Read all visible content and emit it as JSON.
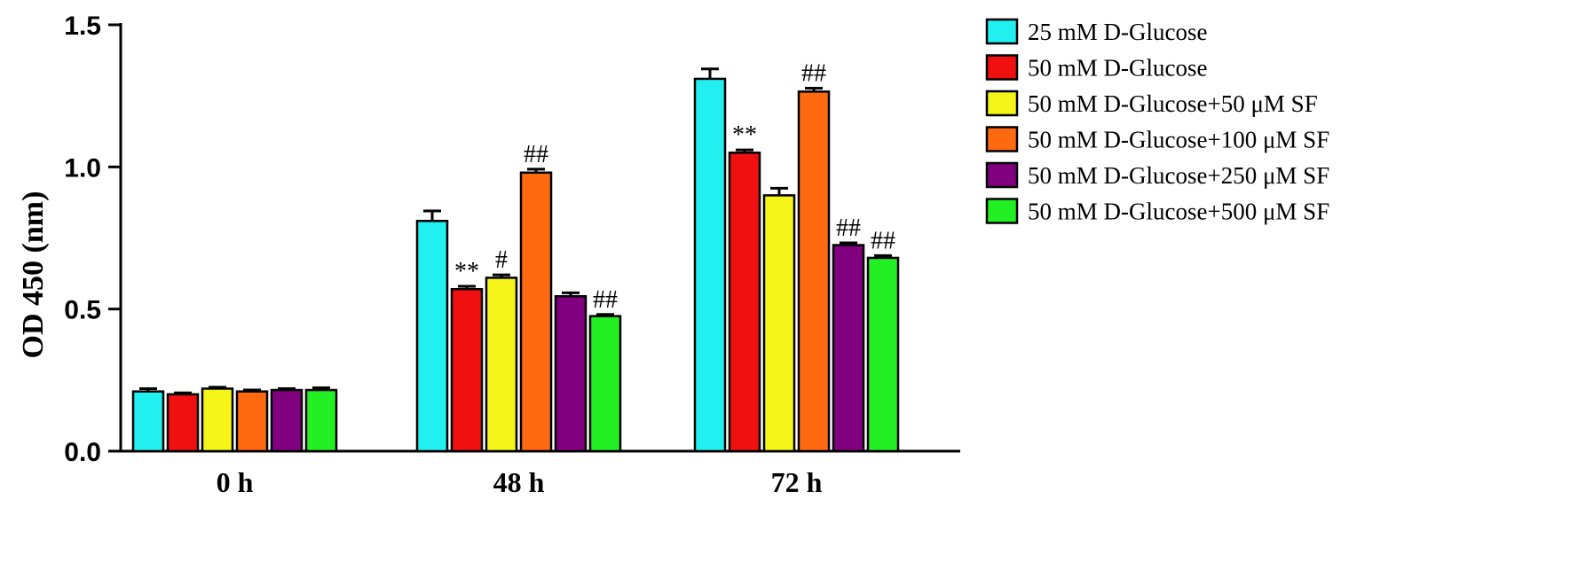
{
  "chart_data": {
    "type": "bar",
    "title": "",
    "xlabel": "",
    "ylabel": "OD 450 (nm)",
    "ylim": [
      0,
      1.5
    ],
    "yticks": [
      "0.0",
      "0.5",
      "1.0",
      "1.5"
    ],
    "ytick_values": [
      0,
      0.5,
      1.0,
      1.5
    ],
    "grid": false,
    "legend_position": "right",
    "categories": [
      "0 h",
      "48 h",
      "72 h"
    ],
    "series": [
      {
        "name": "25 mM D-Glucose",
        "color": "#22F0F0",
        "values": [
          0.21,
          0.81,
          1.31
        ],
        "errors": [
          0.01,
          0.035,
          0.035
        ],
        "annotations": [
          "",
          "",
          ""
        ]
      },
      {
        "name": "50 mM D-Glucose",
        "color": "#F01010",
        "values": [
          0.2,
          0.57,
          1.05
        ],
        "errors": [
          0.005,
          0.01,
          0.01
        ],
        "annotations": [
          "",
          "**",
          "**"
        ]
      },
      {
        "name": "50 mM D-Glucose+50 μM SF",
        "color": "#F5F51A",
        "values": [
          0.22,
          0.61,
          0.9
        ],
        "errors": [
          0.005,
          0.01,
          0.025
        ],
        "annotations": [
          "",
          "#",
          ""
        ]
      },
      {
        "name": "50 mM D-Glucose+100 μM SF",
        "color": "#FF6A10",
        "values": [
          0.21,
          0.98,
          1.265
        ],
        "errors": [
          0.005,
          0.012,
          0.012
        ],
        "annotations": [
          "",
          "##",
          "##"
        ]
      },
      {
        "name": "50 mM D-Glucose+250 μM SF",
        "color": "#800080",
        "values": [
          0.215,
          0.545,
          0.725
        ],
        "errors": [
          0.005,
          0.012,
          0.008
        ],
        "annotations": [
          "",
          "",
          "##"
        ]
      },
      {
        "name": "50 mM D-Glucose+500 μM SF",
        "color": "#22F022",
        "values": [
          0.215,
          0.475,
          0.68
        ],
        "errors": [
          0.008,
          0.006,
          0.008
        ],
        "annotations": [
          "",
          "##",
          "##"
        ]
      }
    ]
  }
}
